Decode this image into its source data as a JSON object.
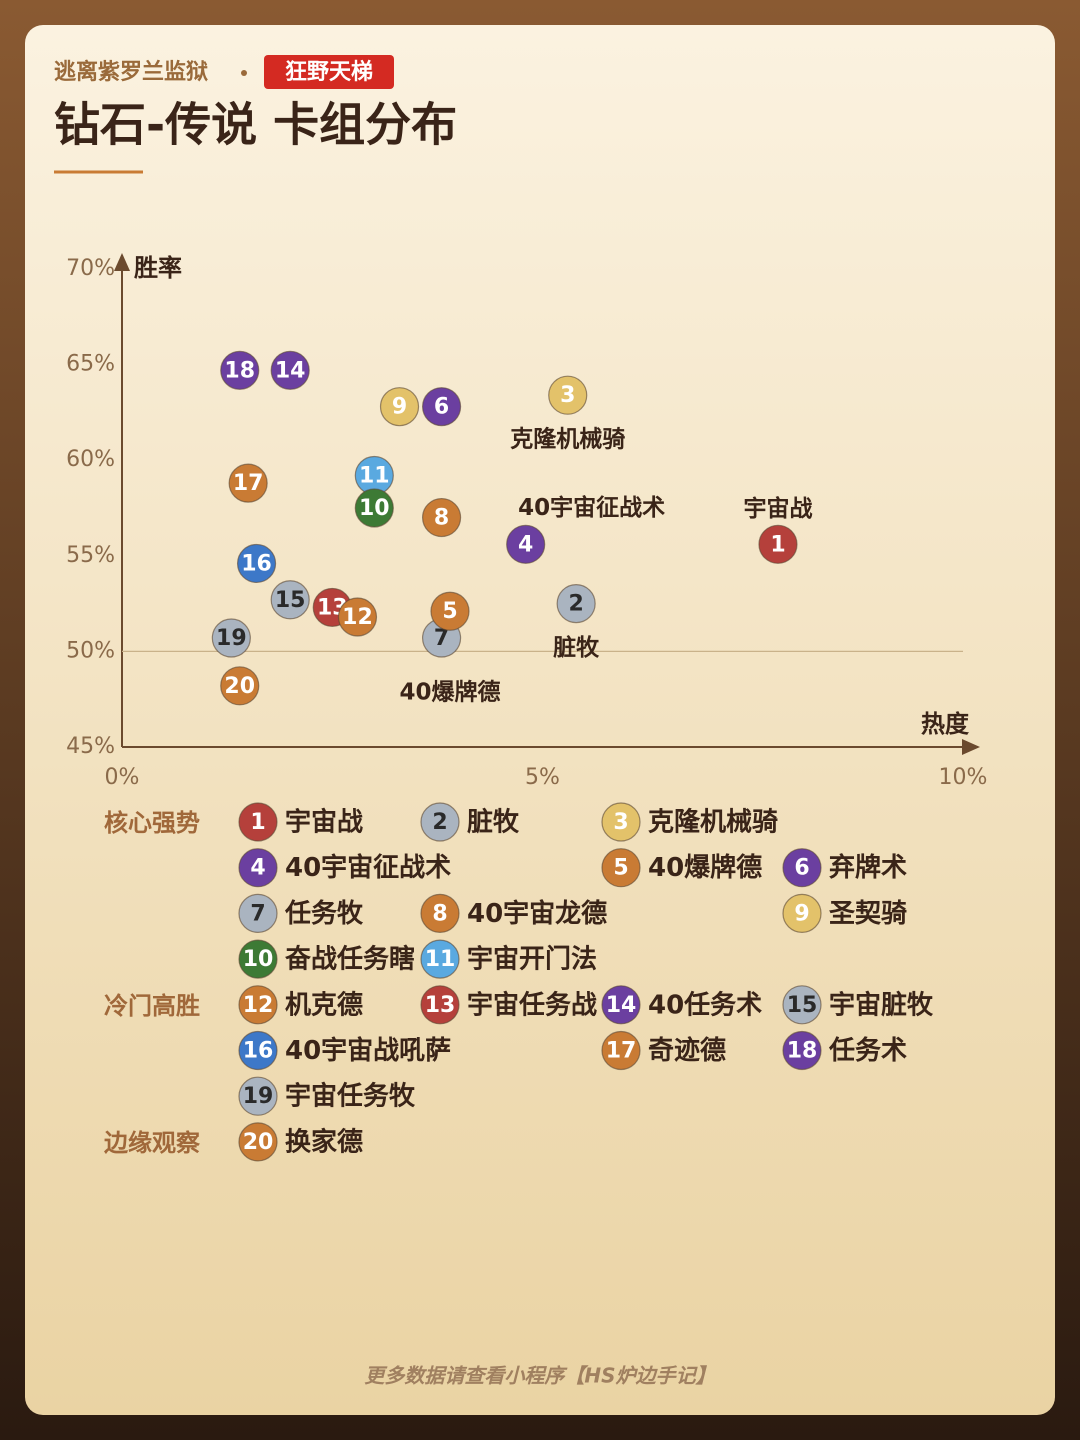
{
  "header": {
    "subtitle": "逃离紫罗兰监狱",
    "badge": "狂野天梯",
    "title": "钻石-传说 卡组分布"
  },
  "chart_data": {
    "type": "scatter",
    "x_label": "热度",
    "y_label": "胜率",
    "xlim": [
      0,
      10
    ],
    "xticks": [
      {
        "value": 0,
        "label": "0%"
      },
      {
        "value": 5,
        "label": "5%"
      },
      {
        "value": 10,
        "label": "10%"
      }
    ],
    "ylim": [
      45,
      70
    ],
    "yticks": [
      {
        "value": 45,
        "label": "45%"
      },
      {
        "value": 50,
        "label": "50%"
      },
      {
        "value": 55,
        "label": "55%"
      },
      {
        "value": 60,
        "label": "60%"
      },
      {
        "value": 65,
        "label": "65%"
      },
      {
        "value": 70,
        "label": "70%"
      }
    ],
    "reference_line": 50,
    "groups": [
      {
        "name": "核心强势",
        "points": [
          {
            "id": "1",
            "name": "宇宙战",
            "x": 7.8,
            "y": 55.6,
            "color": "#b5403b"
          },
          {
            "id": "2",
            "name": "脏牧",
            "x": 5.4,
            "y": 52.5,
            "color": "#aab4c0"
          },
          {
            "id": "3",
            "name": "克隆机械骑",
            "x": 5.3,
            "y": 63.4,
            "color": "#e3c26a"
          },
          {
            "id": "4",
            "name": "40宇宙征战术",
            "x": 4.8,
            "y": 55.6,
            "color": "#6b3fa0"
          },
          {
            "id": "5",
            "name": "40爆牌德",
            "x": 3.9,
            "y": 52.1,
            "color": "#c97b34"
          },
          {
            "id": "6",
            "name": "弃牌术",
            "x": 3.8,
            "y": 62.8,
            "color": "#6b3fa0"
          },
          {
            "id": "7",
            "name": "任务牧",
            "x": 3.8,
            "y": 50.7,
            "color": "#aab4c0"
          },
          {
            "id": "8",
            "name": "40宇宙龙德",
            "x": 3.8,
            "y": 57.0,
            "color": "#c97b34"
          },
          {
            "id": "9",
            "name": "圣契骑",
            "x": 3.3,
            "y": 62.8,
            "color": "#e3c26a"
          },
          {
            "id": "10",
            "name": "奋战任务瞎",
            "x": 3.0,
            "y": 57.5,
            "color": "#3d7a35"
          },
          {
            "id": "11",
            "name": "宇宙开门法",
            "x": 3.0,
            "y": 59.2,
            "color": "#5aa9e0"
          }
        ]
      },
      {
        "name": "冷门高胜",
        "points": [
          {
            "id": "12",
            "name": "机克德",
            "x": 2.8,
            "y": 51.8,
            "color": "#c97b34"
          },
          {
            "id": "13",
            "name": "宇宙任务战",
            "x": 2.5,
            "y": 52.3,
            "color": "#b5403b"
          },
          {
            "id": "14",
            "name": "40任务术",
            "x": 2.0,
            "y": 64.7,
            "color": "#6b3fa0"
          },
          {
            "id": "15",
            "name": "宇宙脏牧",
            "x": 2.0,
            "y": 52.7,
            "color": "#aab4c0"
          },
          {
            "id": "16",
            "name": "40宇宙战吼萨",
            "x": 1.6,
            "y": 54.6,
            "color": "#3d78c8"
          },
          {
            "id": "17",
            "name": "奇迹德",
            "x": 1.5,
            "y": 58.8,
            "color": "#c97b34"
          },
          {
            "id": "18",
            "name": "任务术",
            "x": 1.4,
            "y": 64.7,
            "color": "#6b3fa0"
          },
          {
            "id": "19",
            "name": "宇宙任务牧",
            "x": 1.3,
            "y": 50.7,
            "color": "#aab4c0"
          }
        ]
      },
      {
        "name": "边缘观察",
        "points": [
          {
            "id": "20",
            "name": "换家德",
            "x": 1.4,
            "y": 48.2,
            "color": "#c97b34"
          }
        ]
      }
    ],
    "annotations": [
      "宇宙战",
      "脏牧",
      "克隆机械骑",
      "40宇宙征战术",
      "40爆牌德"
    ]
  },
  "footer": "更多数据请查看小程序【HS炉边手记】"
}
